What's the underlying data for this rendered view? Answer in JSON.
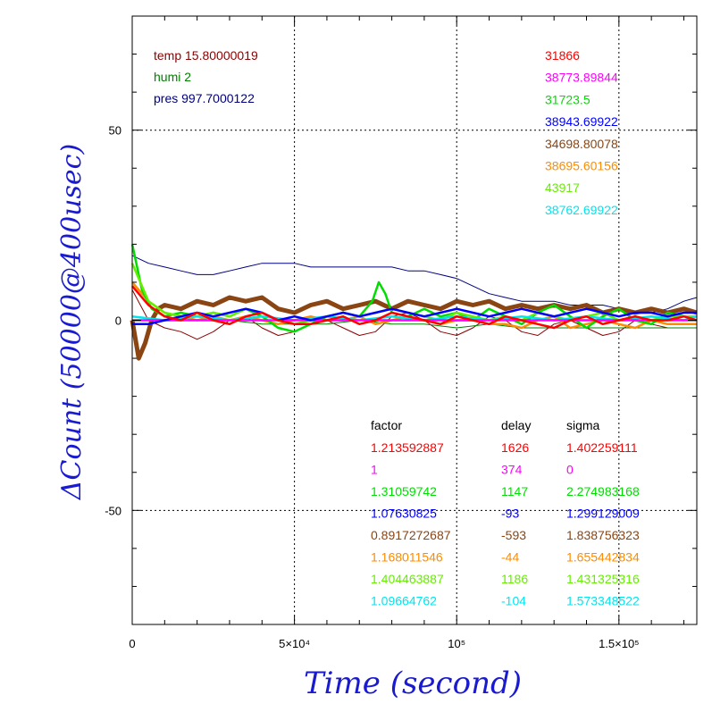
{
  "chart_data": {
    "type": "line",
    "xlabel": "Time (second)",
    "ylabel": "ΔCount (50000@400usec)",
    "xlim": [
      0,
      174000
    ],
    "ylim": [
      -80,
      80
    ],
    "x_ticks": [
      {
        "value": 0,
        "label": "0"
      },
      {
        "value": 50000,
        "label": "5×10⁴"
      },
      {
        "value": 100000,
        "label": "10⁵"
      },
      {
        "value": 150000,
        "label": "1.5×10⁵"
      }
    ],
    "y_ticks": [
      {
        "value": 50,
        "label": "50"
      },
      {
        "value": 0,
        "label": "0"
      },
      {
        "value": -50,
        "label": "-50"
      }
    ],
    "grid": true,
    "env": [
      {
        "text": "temp 15.80000019",
        "color": "#8b0000"
      },
      {
        "text": "humi 2",
        "color": "#008000"
      },
      {
        "text": "pres 997.7000122",
        "color": "#00007f"
      }
    ],
    "means": [
      {
        "text": "31866",
        "color": "#ff0000"
      },
      {
        "text": "38773.89844",
        "color": "#ff00ff"
      },
      {
        "text": "31723.5",
        "color": "#00dd00"
      },
      {
        "text": "38943.69922",
        "color": "#0000ff"
      },
      {
        "text": "34698.80078",
        "color": "#8b4513"
      },
      {
        "text": "38695.60156",
        "color": "#ff8c00"
      },
      {
        "text": "43917",
        "color": "#66ee00"
      },
      {
        "text": "38762.69922",
        "color": "#00e5ee"
      }
    ],
    "table": {
      "headers": [
        "factor",
        "delay",
        "sigma"
      ],
      "rows": [
        {
          "factor": "1.213592887",
          "delay": "1626",
          "sigma": "1.402259111",
          "color": "#ff0000"
        },
        {
          "factor": "1",
          "delay": "374",
          "sigma": "0",
          "color": "#ff00ff"
        },
        {
          "factor": "1.31059742",
          "delay": "1147",
          "sigma": "2.274983168",
          "color": "#00dd00"
        },
        {
          "factor": "1.07630825",
          "delay": "-93",
          "sigma": "1.299129009",
          "color": "#0000ff"
        },
        {
          "factor": "0.8917272687",
          "delay": "-593",
          "sigma": "1.838756323",
          "color": "#8b4513"
        },
        {
          "factor": "1.168011546",
          "delay": "-44",
          "sigma": "1.655442834",
          "color": "#ff8c00"
        },
        {
          "factor": "1.404463887",
          "delay": "1186",
          "sigma": "1.431325316",
          "color": "#66ee00"
        },
        {
          "factor": "1.09664762",
          "delay": "-104",
          "sigma": "1.573348522",
          "color": "#00e5ee"
        }
      ]
    },
    "series": [
      {
        "color": "#00007f",
        "x": [
          0,
          5000,
          10000,
          15000,
          20000,
          25000,
          30000,
          35000,
          40000,
          45000,
          50000,
          55000,
          60000,
          65000,
          70000,
          75000,
          80000,
          85000,
          90000,
          95000,
          100000,
          105000,
          110000,
          115000,
          120000,
          125000,
          130000,
          135000,
          140000,
          145000,
          150000,
          155000,
          160000,
          165000,
          170000,
          174000
        ],
        "y": [
          17,
          15,
          14,
          13,
          12,
          12,
          13,
          14,
          15,
          15,
          15,
          14,
          14,
          14,
          14,
          14,
          14,
          13,
          13,
          12,
          11,
          9,
          7,
          6,
          5,
          5,
          5,
          4,
          4,
          4,
          3,
          2,
          2,
          3,
          5,
          6
        ]
      },
      {
        "color": "#8b0000",
        "x": [
          0,
          5000,
          10000,
          15000,
          20000,
          25000,
          30000,
          35000,
          40000,
          45000,
          50000,
          55000,
          60000,
          65000,
          70000,
          75000,
          80000,
          85000,
          90000,
          95000,
          100000,
          105000,
          110000,
          115000,
          120000,
          125000,
          130000,
          135000,
          140000,
          145000,
          150000,
          155000,
          160000,
          165000,
          170000,
          174000
        ],
        "y": [
          8,
          0,
          -2,
          -3,
          -5,
          -3,
          0,
          1,
          -2,
          -4,
          -3,
          -1,
          0,
          -2,
          -4,
          -3,
          1,
          2,
          0,
          -3,
          -4,
          -2,
          1,
          0,
          -3,
          -4,
          -1,
          0,
          -2,
          -4,
          -3,
          0,
          -1,
          -2,
          -2,
          -2
        ]
      },
      {
        "color": "#008000",
        "x": [
          0,
          10000,
          20000,
          30000,
          40000,
          50000,
          60000,
          70000,
          80000,
          90000,
          100000,
          110000,
          120000,
          130000,
          140000,
          150000,
          160000,
          170000,
          174000
        ],
        "y": [
          1,
          0,
          0,
          0,
          -1,
          -1,
          -1,
          0,
          -1,
          -1,
          -2,
          -1,
          -2,
          -2,
          -2,
          -2,
          -2,
          -2,
          -2
        ]
      },
      {
        "color": "#8b4513",
        "x": [
          0,
          2000,
          4000,
          6000,
          8000,
          10000,
          15000,
          20000,
          25000,
          30000,
          35000,
          40000,
          45000,
          50000,
          55000,
          60000,
          65000,
          70000,
          75000,
          80000,
          85000,
          90000,
          95000,
          100000,
          105000,
          110000,
          115000,
          120000,
          125000,
          130000,
          135000,
          140000,
          145000,
          150000,
          155000,
          160000,
          165000,
          170000,
          174000
        ],
        "y": [
          0,
          -10,
          -6,
          0,
          3,
          4,
          3,
          5,
          4,
          6,
          5,
          6,
          3,
          2,
          4,
          5,
          3,
          4,
          5,
          3,
          5,
          4,
          3,
          5,
          4,
          5,
          3,
          4,
          3,
          4,
          3,
          4,
          2,
          3,
          2,
          3,
          2,
          3,
          2
        ]
      },
      {
        "color": "#ff8c00",
        "x": [
          0,
          5000,
          10000,
          15000,
          20000,
          25000,
          30000,
          35000,
          40000,
          45000,
          50000,
          55000,
          60000,
          65000,
          70000,
          75000,
          80000,
          85000,
          90000,
          95000,
          100000,
          105000,
          110000,
          115000,
          120000,
          125000,
          130000,
          135000,
          140000,
          145000,
          150000,
          155000,
          160000,
          165000,
          170000,
          174000
        ],
        "y": [
          10,
          5,
          2,
          1,
          0,
          1,
          0,
          1,
          0,
          -1,
          0,
          1,
          0,
          0,
          1,
          -1,
          0,
          1,
          0,
          -1,
          0,
          0,
          -1,
          -1,
          -2,
          0,
          1,
          -2,
          -1,
          0,
          -1,
          -2,
          0,
          -1,
          -1,
          -1
        ]
      },
      {
        "color": "#00dd00",
        "x": [
          0,
          3000,
          6000,
          10000,
          15000,
          20000,
          25000,
          30000,
          35000,
          40000,
          45000,
          50000,
          55000,
          60000,
          65000,
          70000,
          74000,
          76000,
          78000,
          80000,
          85000,
          90000,
          95000,
          100000,
          105000,
          110000,
          115000,
          120000,
          125000,
          130000,
          135000,
          140000,
          145000,
          150000,
          155000,
          160000,
          165000,
          170000,
          174000
        ],
        "y": [
          20,
          8,
          3,
          1,
          2,
          1,
          2,
          1,
          3,
          1,
          -2,
          -3,
          -1,
          1,
          2,
          1,
          5,
          10,
          7,
          2,
          1,
          3,
          1,
          2,
          0,
          3,
          1,
          -1,
          2,
          4,
          1,
          -2,
          1,
          3,
          0,
          -1,
          2,
          1,
          1
        ]
      },
      {
        "color": "#66ee00",
        "x": [
          0,
          5000,
          10000,
          15000,
          20000,
          25000,
          30000,
          35000,
          40000,
          45000,
          50000,
          55000,
          60000,
          65000,
          70000,
          75000,
          80000,
          85000,
          90000,
          95000,
          100000,
          105000,
          110000,
          115000,
          120000,
          125000,
          130000,
          135000,
          140000,
          145000,
          150000,
          155000,
          160000,
          165000,
          170000,
          174000
        ],
        "y": [
          15,
          5,
          2,
          1,
          1,
          2,
          1,
          3,
          2,
          0,
          -1,
          0,
          1,
          2,
          1,
          2,
          3,
          2,
          1,
          0,
          2,
          1,
          0,
          1,
          0,
          2,
          1,
          0,
          1,
          2,
          0,
          1,
          0,
          1,
          1,
          1
        ]
      },
      {
        "color": "#00e5ee",
        "x": [
          0,
          10000,
          20000,
          30000,
          40000,
          50000,
          60000,
          70000,
          80000,
          90000,
          100000,
          110000,
          120000,
          130000,
          140000,
          150000,
          160000,
          170000,
          174000
        ],
        "y": [
          1,
          0,
          1,
          0,
          1,
          0,
          1,
          0,
          1,
          0,
          1,
          0,
          1,
          0,
          1,
          0,
          1,
          0,
          1
        ]
      },
      {
        "color": "#ff00ff",
        "x": [
          0,
          174000
        ],
        "y": [
          0,
          0
        ]
      },
      {
        "color": "#0000ff",
        "x": [
          0,
          5000,
          10000,
          15000,
          20000,
          25000,
          30000,
          35000,
          40000,
          45000,
          50000,
          55000,
          60000,
          65000,
          70000,
          75000,
          80000,
          85000,
          90000,
          95000,
          100000,
          105000,
          110000,
          115000,
          120000,
          125000,
          130000,
          135000,
          140000,
          145000,
          150000,
          155000,
          160000,
          165000,
          170000,
          174000
        ],
        "y": [
          -1,
          -1,
          0,
          1,
          2,
          1,
          2,
          3,
          2,
          0,
          1,
          0,
          1,
          2,
          1,
          2,
          3,
          2,
          1,
          2,
          3,
          2,
          1,
          2,
          3,
          2,
          1,
          2,
          3,
          2,
          1,
          2,
          2,
          1,
          2,
          2
        ]
      },
      {
        "color": "#ff0000",
        "x": [
          0,
          5000,
          10000,
          15000,
          20000,
          25000,
          30000,
          35000,
          40000,
          45000,
          50000,
          55000,
          60000,
          65000,
          70000,
          75000,
          80000,
          85000,
          90000,
          95000,
          100000,
          105000,
          110000,
          115000,
          120000,
          125000,
          130000,
          135000,
          140000,
          145000,
          150000,
          155000,
          160000,
          165000,
          170000,
          174000
        ],
        "y": [
          9,
          4,
          1,
          0,
          2,
          0,
          -1,
          1,
          2,
          0,
          -1,
          -1,
          0,
          1,
          -1,
          0,
          2,
          1,
          0,
          -1,
          1,
          0,
          -1,
          1,
          0,
          -1,
          -2,
          0,
          1,
          -1,
          0,
          1,
          0,
          0,
          1,
          0
        ]
      }
    ]
  }
}
